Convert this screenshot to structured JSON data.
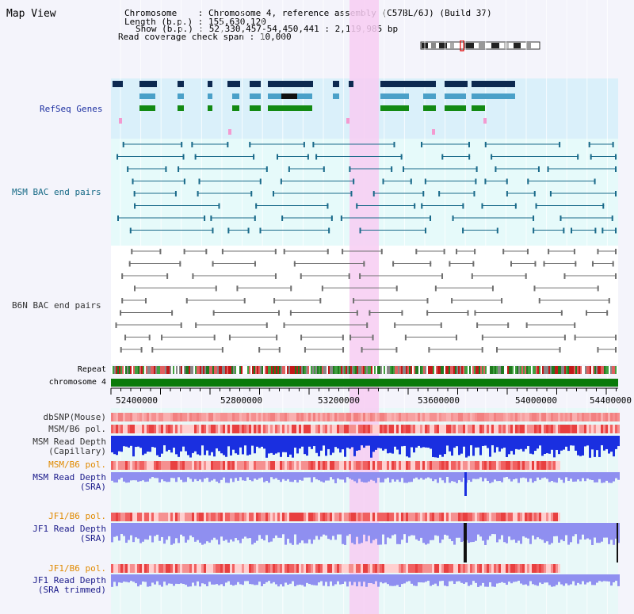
{
  "title": "Map View",
  "info": {
    "chromosome_label": "Chromosome",
    "chromosome_value": "Chromosome 4, reference assembly (C57BL/6J) (Build 37)",
    "length_label": "Length (b.p.)",
    "length_value": "155,630,120",
    "show_label": "Show (b.p.)",
    "show_value": "52,330,457-54,450,441 : 2,119,985 bp",
    "coverage_label": "Read coverage check span",
    "coverage_value": "10,000",
    "sep": ":"
  },
  "tracks": {
    "refseq": "RefSeq Genes",
    "msm_bac": "MSM BAC end pairs",
    "b6n_bac": "B6N BAC end pairs",
    "repeat": "Repeat",
    "chromosome": "chromosome 4",
    "dbsnp": "dbSNP(Mouse)",
    "msm_b6_pol_1": "MSM/B6 pol.",
    "msm_depth_cap_1": "MSM Read Depth",
    "msm_depth_cap_2": "(Capillary)",
    "msm_b6_pol_2": "MSM/B6 pol.",
    "msm_depth_sra_1": "MSM Read Depth",
    "msm_depth_sra_2": "(SRA)",
    "jf1_b6_pol_1": "JF1/B6 pol.",
    "jf1_depth_sra_1": "JF1 Read Depth",
    "jf1_depth_sra_2": "(SRA)",
    "jf1_b6_pol_2": "JF1/B6 pol.",
    "jf1_depth_trim_1": "JF1 Read Depth",
    "jf1_depth_trim_2": "(SRA trimmed)"
  },
  "axis_ticks": [
    "52400000",
    "52800000",
    "53200000",
    "53600000",
    "54000000",
    "54400000"
  ],
  "colors": {
    "refseq_bg": "#daf0fa",
    "bac_bg": "#e6fafa",
    "highlight": "#f7cdf2",
    "chromosome_bar": "#0a7a0a",
    "dbsnp": "#f59090",
    "depth_blue": "#1a2fe0",
    "depth_light": "#8f8ff0",
    "dark_navy": "#0d2950",
    "teal_gene": "#4aa0c8",
    "green_gene": "#138a13",
    "msm_line": "#1a6a8a",
    "b6n_line": "#707070"
  }
}
